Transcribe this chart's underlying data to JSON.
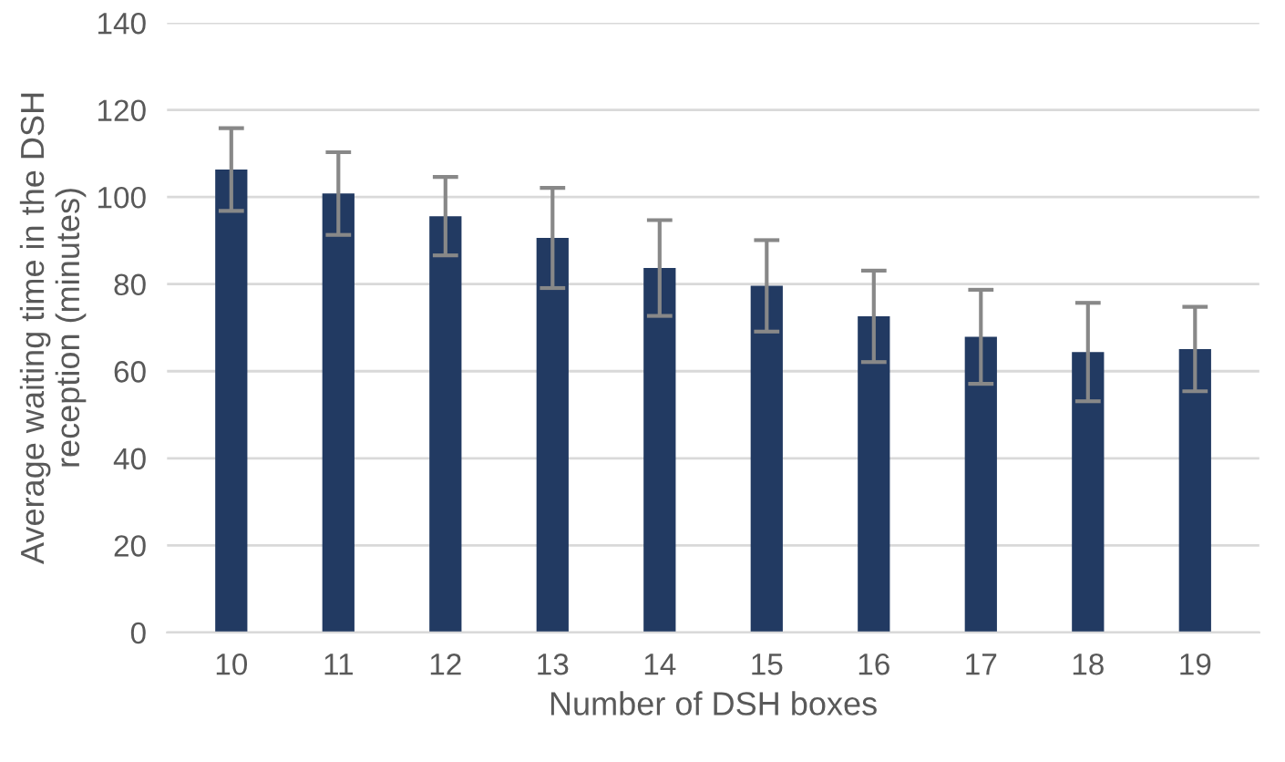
{
  "chart_data": {
    "type": "bar",
    "xlabel": "Number of DSH boxes",
    "ylabel": "Average waiting time in the DSH\nreception (minutes)",
    "categories": [
      "10",
      "11",
      "12",
      "13",
      "14",
      "15",
      "16",
      "17",
      "18",
      "19"
    ],
    "values": [
      106.3,
      100.8,
      95.6,
      90.6,
      83.7,
      79.6,
      72.6,
      67.9,
      64.4,
      65.1
    ],
    "errors": [
      9.5,
      9.5,
      9,
      11.5,
      11,
      10.5,
      10.5,
      10.8,
      11.3,
      9.7
    ],
    "color": "#223a62",
    "ylim": [
      0,
      140
    ],
    "yticks": [
      0,
      20,
      40,
      60,
      80,
      100,
      120,
      140
    ],
    "grid": "y"
  }
}
